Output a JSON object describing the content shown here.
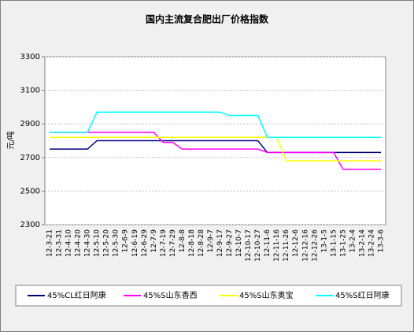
{
  "chart_data": {
    "type": "line",
    "title": "国内主流复合肥出厂价格指数",
    "y_label": "元/吨",
    "categories": [
      "12-3-21",
      "12-3-31",
      "12-4-10",
      "12-4-20",
      "12-4-30",
      "12-5-10",
      "12-5-20",
      "12-5-30",
      "12-6-9",
      "12-6-19",
      "12-6-29",
      "12-7-9",
      "12-7-19",
      "12-7-29",
      "12-8-8",
      "12-8-18",
      "12-8-28",
      "12-9-7",
      "12-9-17",
      "12-9-27",
      "12-10-7",
      "12-10-17",
      "12-10-27",
      "12-11-6",
      "12-11-16",
      "12-11-26",
      "12-12-6",
      "12-12-16",
      "12-12-26",
      "13-1-5",
      "13-1-15",
      "13-1-25",
      "13-2-4",
      "13-2-14",
      "13-2-24",
      "13-3-6"
    ],
    "series": [
      {
        "name": "45%CL红日阿康",
        "color": "#000080",
        "values": [
          2750,
          2750,
          2750,
          2750,
          2750,
          2800,
          2800,
          2800,
          2800,
          2800,
          2800,
          2800,
          2800,
          2800,
          2800,
          2800,
          2800,
          2800,
          2800,
          2800,
          2800,
          2800,
          2800,
          2730,
          2730,
          2730,
          2730,
          2730,
          2730,
          2730,
          2730,
          2730,
          2730,
          2730,
          2730,
          2730
        ]
      },
      {
        "name": "45%S山东香西",
        "color": "#ff00ff",
        "values": [
          2850,
          2850,
          2850,
          2850,
          2850,
          2850,
          2850,
          2850,
          2850,
          2850,
          2850,
          2850,
          2790,
          2790,
          2750,
          2750,
          2750,
          2750,
          2750,
          2750,
          2750,
          2750,
          2750,
          2730,
          2730,
          2730,
          2730,
          2730,
          2730,
          2730,
          2730,
          2630,
          2630,
          2630,
          2630,
          2630
        ]
      },
      {
        "name": "45%S山东奥宝",
        "color": "#ffff00",
        "values": [
          2820,
          2820,
          2820,
          2820,
          2820,
          2820,
          2820,
          2820,
          2820,
          2820,
          2820,
          2820,
          2820,
          2820,
          2820,
          2820,
          2820,
          2820,
          2820,
          2820,
          2820,
          2820,
          2820,
          2820,
          2820,
          2680,
          2680,
          2680,
          2680,
          2680,
          2680,
          2680,
          2680,
          2680,
          2680,
          2680
        ]
      },
      {
        "name": "45%S红日阿康",
        "color": "#00ffff",
        "values": [
          2850,
          2850,
          2850,
          2850,
          2850,
          2970,
          2970,
          2970,
          2970,
          2970,
          2970,
          2970,
          2970,
          2970,
          2970,
          2970,
          2970,
          2970,
          2970,
          2950,
          2950,
          2950,
          2950,
          2820,
          2820,
          2820,
          2820,
          2820,
          2820,
          2820,
          2820,
          2820,
          2820,
          2820,
          2820,
          2820
        ]
      }
    ],
    "ylim": [
      2300,
      3300
    ],
    "yticks": [
      2300,
      2500,
      2700,
      2900,
      3100,
      3300
    ],
    "grid": true
  }
}
